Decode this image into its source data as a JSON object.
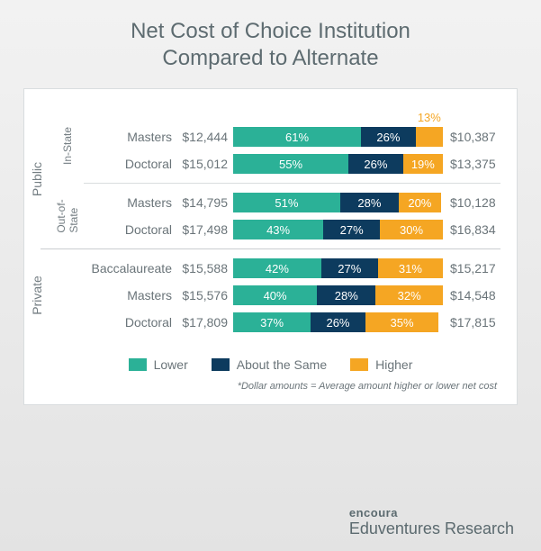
{
  "title_line1": "Net Cost of Choice Institution",
  "title_line2": "Compared to Alternate",
  "colors": {
    "lower": "#2bb197",
    "same": "#0d3b5e",
    "higher": "#f5a623",
    "text": "#6a7479",
    "panel_bg": "#ffffff",
    "panel_border": "#d9dddf"
  },
  "bar_total_percent": 100,
  "legend": {
    "lower": "Lower",
    "same": "About the Same",
    "higher": "Higher"
  },
  "footnote": "*Dollar amounts = Average amount higher or lower net cost",
  "groups": [
    {
      "label": "Public",
      "subgroups": [
        {
          "label": "In-State",
          "rows": [
            {
              "degree": "Masters",
              "left_amt": "$12,444",
              "lower": 61,
              "same": 26,
              "higher": 13,
              "higher_overflow": true,
              "right_amt": "$10,387"
            },
            {
              "degree": "Doctoral",
              "left_amt": "$15,012",
              "lower": 55,
              "same": 26,
              "higher": 19,
              "higher_overflow": false,
              "right_amt": "$13,375"
            }
          ]
        },
        {
          "label": "Out-of-\nState",
          "rows": [
            {
              "degree": "Masters",
              "left_amt": "$14,795",
              "lower": 51,
              "same": 28,
              "higher": 20,
              "higher_overflow": false,
              "right_amt": "$10,128"
            },
            {
              "degree": "Doctoral",
              "left_amt": "$17,498",
              "lower": 43,
              "same": 27,
              "higher": 30,
              "higher_overflow": false,
              "right_amt": "$16,834"
            }
          ]
        }
      ]
    },
    {
      "label": "Private",
      "subgroups": [
        {
          "label": "",
          "rows": [
            {
              "degree": "Baccalaureate",
              "left_amt": "$15,588",
              "lower": 42,
              "same": 27,
              "higher": 31,
              "higher_overflow": false,
              "right_amt": "$15,217"
            },
            {
              "degree": "Masters",
              "left_amt": "$15,576",
              "lower": 40,
              "same": 28,
              "higher": 32,
              "higher_overflow": false,
              "right_amt": "$14,548"
            },
            {
              "degree": "Doctoral",
              "left_amt": "$17,809",
              "lower": 37,
              "same": 26,
              "higher": 35,
              "higher_overflow": false,
              "right_amt": "$17,815"
            }
          ]
        }
      ]
    }
  ],
  "brand": {
    "line1": "encoura",
    "line2_a": "Eduventures",
    "line2_b": " Research"
  }
}
